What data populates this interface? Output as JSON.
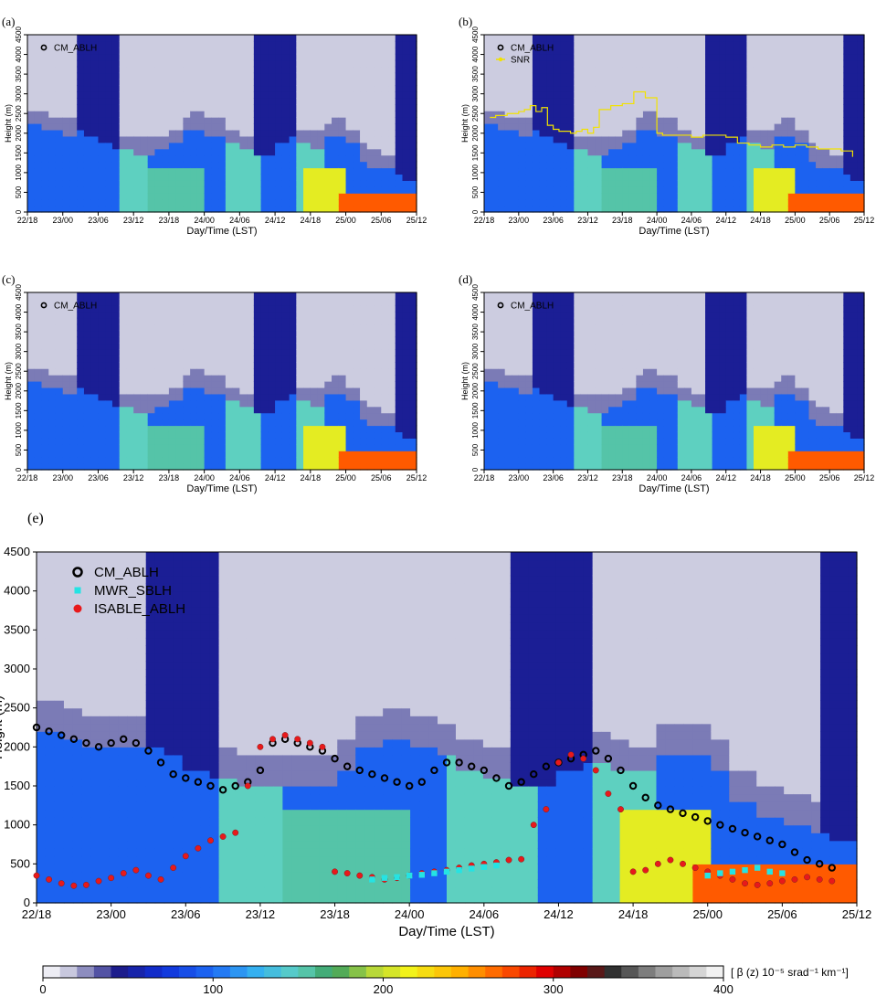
{
  "chart_data": {
    "type": "heatmap",
    "xlabel": "Day/Time (LST)",
    "ylabel": "Height (m)",
    "x_ticks": [
      "22/18",
      "23/00",
      "23/06",
      "23/12",
      "23/18",
      "24/00",
      "24/06",
      "24/12",
      "24/18",
      "25/00",
      "25/06",
      "25/12"
    ],
    "xlim": [
      0,
      66
    ],
    "y_ticks": [
      0,
      500,
      1000,
      1500,
      2000,
      2500,
      3000,
      3500,
      4000,
      4500
    ],
    "ylim": [
      0,
      4500
    ],
    "colorbar": {
      "label": "[ β (z) 10⁻⁵ srad⁻¹ km⁻¹]",
      "ticks": [
        0,
        100,
        200,
        300,
        400
      ],
      "range": [
        0,
        400
      ]
    },
    "grid": false,
    "panels": [
      {
        "label": "(a)",
        "legend": [
          "CM_ABLH"
        ],
        "legend_position": "top-left"
      },
      {
        "label": "(b)",
        "legend": [
          "CM_ABLH",
          "SNR"
        ],
        "legend_position": "top-left",
        "series": [
          {
            "name": "SNR",
            "color": "#f2e200",
            "x": [
              1,
              2,
              4,
              6,
              7,
              8,
              9,
              10,
              11,
              12,
              13,
              15,
              16,
              17,
              18,
              19,
              20,
              22,
              24,
              26,
              28,
              30,
              31,
              34,
              36,
              38,
              40,
              42,
              44,
              46,
              48,
              50,
              52,
              54,
              56,
              58,
              60,
              62,
              64
            ],
            "y": [
              2400,
              2450,
              2500,
              2550,
              2600,
              2700,
              2550,
              2650,
              2200,
              2100,
              2050,
              2000,
              2050,
              2100,
              2000,
              2150,
              2600,
              2700,
              2750,
              3050,
              2900,
              2000,
              1950,
              1950,
              1900,
              1950,
              1950,
              1900,
              1750,
              1700,
              1650,
              1700,
              1650,
              1700,
              1650,
              1600,
              1600,
              1550,
              1400
            ]
          }
        ]
      },
      {
        "label": "(c)",
        "legend": [
          "CM_ABLH"
        ],
        "legend_position": "top-left"
      },
      {
        "label": "(d)",
        "legend": [
          "CM_ABLH"
        ],
        "legend_position": "top-left"
      },
      {
        "label": "(e)",
        "legend": [
          "CM_ABLH",
          "MWR_SBLH",
          "ISABLE_ABLH"
        ],
        "legend_position": "top-left",
        "series": [
          {
            "name": "CM_ABLH",
            "color": "#000000",
            "x": [
              0,
              1,
              2,
              3,
              4,
              5,
              6,
              7,
              8,
              9,
              10,
              11,
              12,
              13,
              14,
              15,
              16,
              17,
              18,
              19,
              20,
              21,
              22,
              23,
              24,
              25,
              26,
              27,
              28,
              29,
              30,
              31,
              32,
              33,
              34,
              35,
              36,
              37,
              38,
              39,
              40,
              41,
              42,
              43,
              44,
              45,
              46,
              47,
              48,
              49,
              50,
              51,
              52,
              53,
              54,
              55,
              56,
              57,
              58,
              59,
              60,
              61,
              62,
              63,
              64
            ],
            "y": [
              2250,
              2200,
              2150,
              2100,
              2050,
              2000,
              2050,
              2100,
              2050,
              1950,
              1800,
              1650,
              1600,
              1550,
              1500,
              1450,
              1500,
              1550,
              1700,
              2050,
              2100,
              2050,
              2000,
              1950,
              1850,
              1750,
              1700,
              1650,
              1600,
              1550,
              1500,
              1550,
              1700,
              1800,
              1800,
              1750,
              1700,
              1600,
              1500,
              1550,
              1650,
              1750,
              1800,
              1850,
              1900,
              1950,
              1850,
              1700,
              1500,
              1350,
              1250,
              1200,
              1150,
              1100,
              1050,
              1000,
              950,
              900,
              850,
              800,
              750,
              650,
              550,
              500,
              450
            ]
          },
          {
            "name": "ISABLE_ABLH",
            "color": "#e8191b",
            "x": [
              0,
              1,
              2,
              3,
              4,
              5,
              6,
              7,
              8,
              9,
              10,
              11,
              12,
              13,
              14,
              15,
              16,
              17,
              18,
              19,
              20,
              21,
              22,
              23,
              24,
              25,
              26,
              27,
              28,
              29,
              30,
              31,
              32,
              33,
              34,
              35,
              36,
              37,
              38,
              39,
              40,
              41,
              42,
              43,
              44,
              45,
              46,
              47,
              48,
              49,
              50,
              51,
              52,
              53,
              54,
              55,
              56,
              57,
              58,
              59,
              60,
              61,
              62,
              63,
              64
            ],
            "y": [
              350,
              300,
              250,
              220,
              230,
              280,
              320,
              380,
              420,
              350,
              300,
              450,
              600,
              700,
              800,
              850,
              900,
              1500,
              2000,
              2100,
              2150,
              2100,
              2050,
              2000,
              400,
              380,
              350,
              330,
              300,
              320,
              350,
              380,
              400,
              420,
              450,
              480,
              500,
              520,
              550,
              560,
              1000,
              1200,
              1800,
              1900,
              1850,
              1700,
              1400,
              1200,
              400,
              420,
              500,
              550,
              500,
              450,
              400,
              350,
              300,
              250,
              230,
              250,
              280,
              300,
              330,
              300,
              280
            ]
          },
          {
            "name": "MWR_SBLH",
            "color": "#25e3e3",
            "x": [
              27,
              28,
              29,
              30,
              31,
              32,
              33,
              34,
              35,
              36,
              37,
              54,
              55,
              56,
              57,
              58,
              59,
              60
            ],
            "y": [
              300,
              320,
              330,
              350,
              360,
              380,
              400,
              420,
              440,
              460,
              480,
              350,
              380,
              400,
              420,
              450,
              400,
              380
            ]
          }
        ]
      }
    ]
  }
}
